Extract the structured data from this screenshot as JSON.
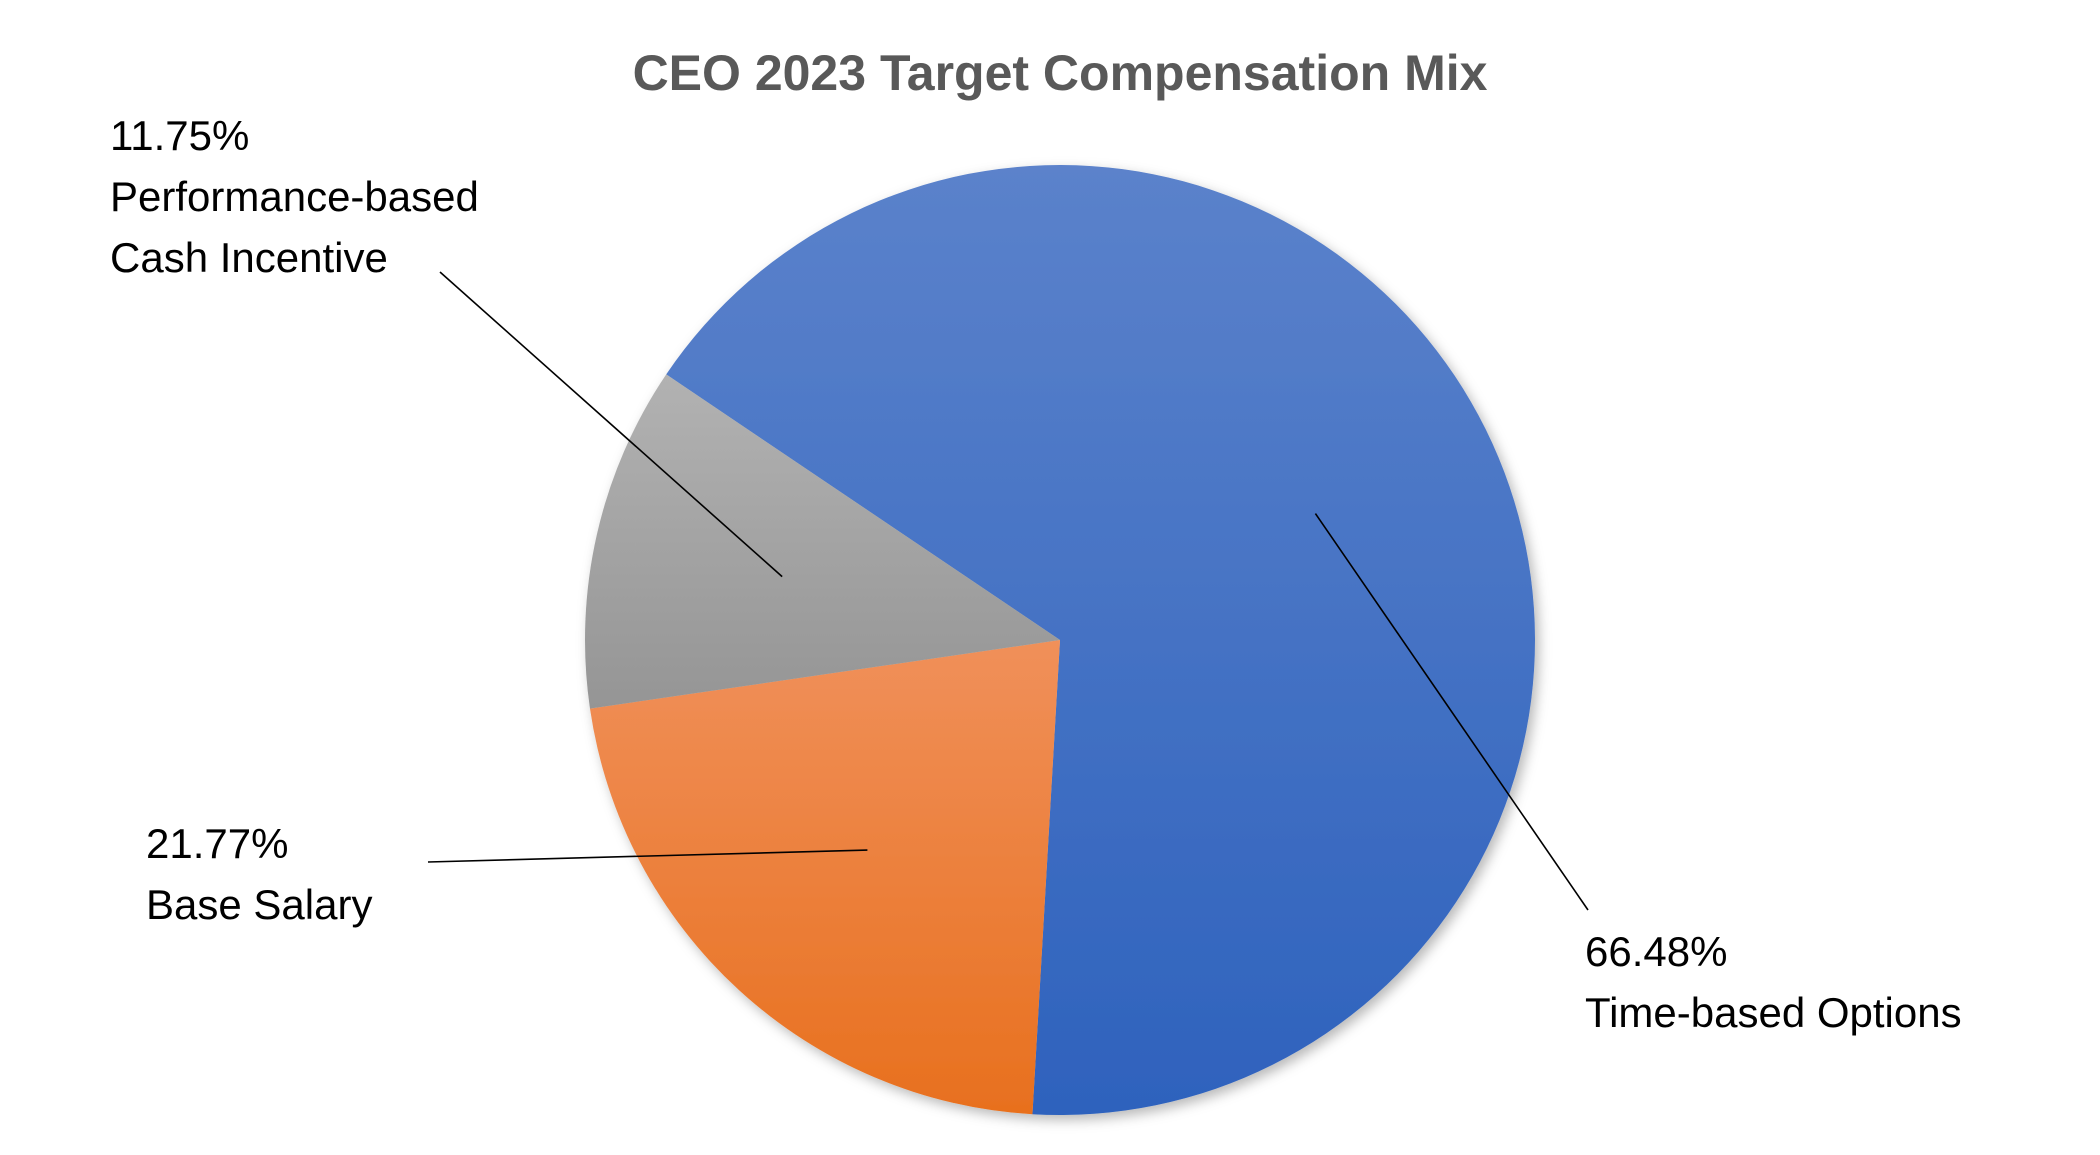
{
  "chart_data": {
    "type": "pie",
    "title": "CEO 2023 Target Compensation Mix",
    "slices": [
      {
        "name": "Time-based Options",
        "value": 66.48,
        "value_label": "66.48%",
        "color": "#4472C4"
      },
      {
        "name": "Base Salary",
        "value": 21.77,
        "value_label": "21.77%",
        "color": "#ED7D31"
      },
      {
        "name": "Performance-based Cash Incentive",
        "value": 11.75,
        "value_label": "11.75%",
        "name_lines": [
          "Performance-based",
          "Cash Incentive"
        ],
        "color": "#A5A5A5"
      }
    ],
    "legend": "none",
    "data_labels": "outside-with-leader-lines"
  }
}
